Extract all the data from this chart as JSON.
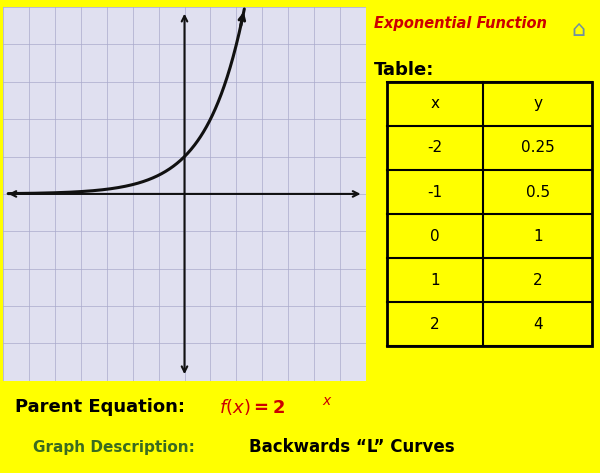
{
  "bg_color": "#FFFF00",
  "graph_bg": "#E0E0F0",
  "grid_color": "#AAAACC",
  "title": "Exponential Function",
  "title_color": "#CC0000",
  "table_label": "Table:",
  "table_x": [
    "x",
    "-2",
    "-1",
    "0",
    "1",
    "2"
  ],
  "table_y": [
    "y",
    "0.25",
    "0.5",
    "1",
    "2",
    "4"
  ],
  "equation_label": "Parent Equation:",
  "equation_color": "#CC0000",
  "desc_label": "Graph Description:",
  "desc_text": "Backwards “L” Curves",
  "desc_label_color": "#3A6B20",
  "axis_color": "#111111",
  "curve_color": "#111111",
  "curve_lw": 2.2,
  "xlim": [
    -7,
    7
  ],
  "ylim": [
    -5,
    5
  ]
}
